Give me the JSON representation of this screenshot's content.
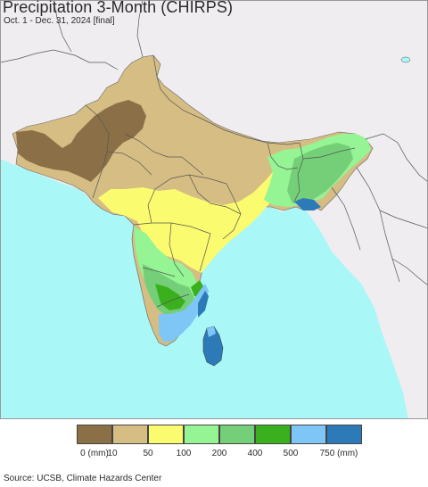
{
  "map": {
    "title": "Precipitation 3-Month (CHIRPS)",
    "subtitle": "Oct. 1 - Dec. 31, 2024 [final]",
    "colors": {
      "ocean": "#a9f7f7",
      "outside_land": "#f0edf1",
      "border": "#555555"
    }
  },
  "legend": {
    "labels": [
      "0 (mm)",
      "10",
      "50",
      "100",
      "200",
      "400",
      "500",
      "750 (mm)"
    ],
    "colors": [
      "#8b7047",
      "#d6bd84",
      "#fbfb6f",
      "#95f493",
      "#75cf78",
      "#3ab01f",
      "#7dc6f6",
      "#2c7ab8"
    ]
  },
  "source": "Source: UCSB, Climate Hazards Center"
}
